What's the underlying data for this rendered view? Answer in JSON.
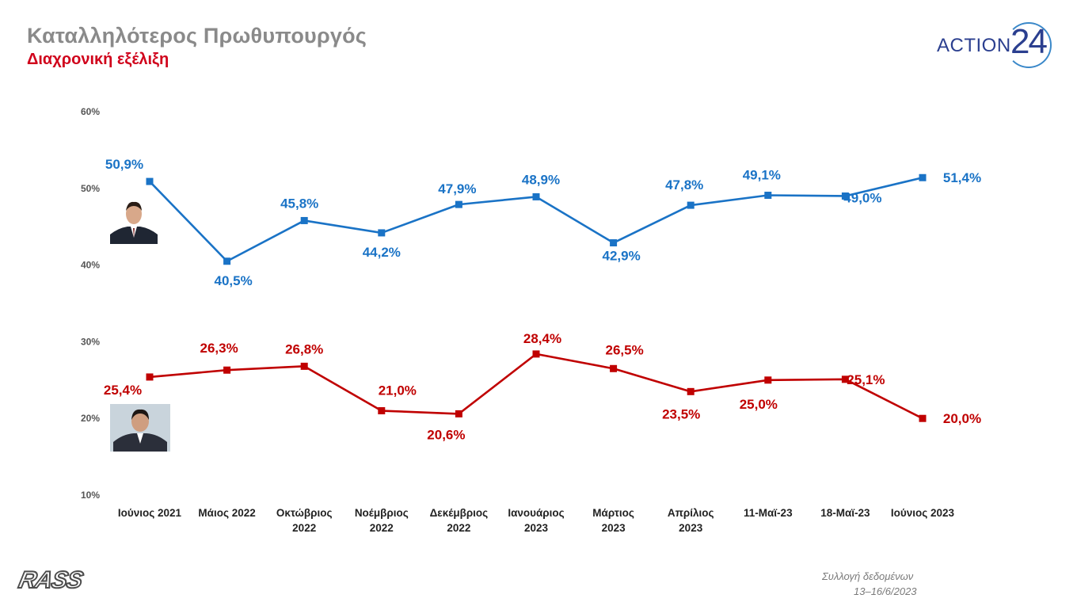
{
  "header": {
    "title": "Καταλληλότερος Πρωθυπουργός",
    "subtitle": "Διαχρονική εξέλιξη"
  },
  "logo": {
    "word": "ACTION",
    "number": "24"
  },
  "publisher_logo": {
    "text": "RASS"
  },
  "source": {
    "line1": "Συλλογή δεδομένων",
    "line2": "13–16/6/2023"
  },
  "colors": {
    "series_blue": "#1a73c6",
    "series_red": "#c00000",
    "axis_text": "#555555"
  },
  "icons": {
    "portrait_blue": "politician-portrait-icon",
    "portrait_red": "politician-portrait-icon"
  },
  "chart_data": {
    "type": "line",
    "title": "",
    "xlabel": "",
    "ylabel": "",
    "ylim": [
      10,
      60
    ],
    "yticks": [
      "10%",
      "20%",
      "30%",
      "40%",
      "50%",
      "60%"
    ],
    "grid": false,
    "categories": [
      [
        "Ιούνιος 2021"
      ],
      [
        "Μάιος 2022"
      ],
      [
        "Οκτώβριος",
        "2022"
      ],
      [
        "Νοέμβριος",
        "2022"
      ],
      [
        "Δεκέμβριος",
        "2022"
      ],
      [
        "Ιανουάριος",
        "2023"
      ],
      [
        "Μάρτιος",
        "2023"
      ],
      [
        "Απρίλιος",
        "2023"
      ],
      [
        "11-Μαϊ-23"
      ],
      [
        "18-Μαϊ-23"
      ],
      [
        "Ιούνιος 2023"
      ]
    ],
    "series": [
      {
        "color": "#1a73c6",
        "values": [
          50.9,
          40.5,
          45.8,
          44.2,
          47.9,
          48.9,
          42.9,
          47.8,
          49.1,
          49.0,
          51.4
        ],
        "labels": [
          "50,9%",
          "40,5%",
          "45,8%",
          "44,2%",
          "47,9%",
          "48,9%",
          "42,9%",
          "47,8%",
          "49,1%",
          "49,0%",
          "51,4%"
        ]
      },
      {
        "color": "#c00000",
        "values": [
          25.4,
          26.3,
          26.8,
          21.0,
          20.6,
          28.4,
          26.5,
          23.5,
          25.0,
          25.1,
          20.0
        ],
        "labels": [
          "25,4%",
          "26,3%",
          "26,8%",
          "21,0%",
          "20,6%",
          "28,4%",
          "26,5%",
          "23,5%",
          "25,0%",
          "25,1%",
          "20,0%"
        ]
      }
    ]
  }
}
